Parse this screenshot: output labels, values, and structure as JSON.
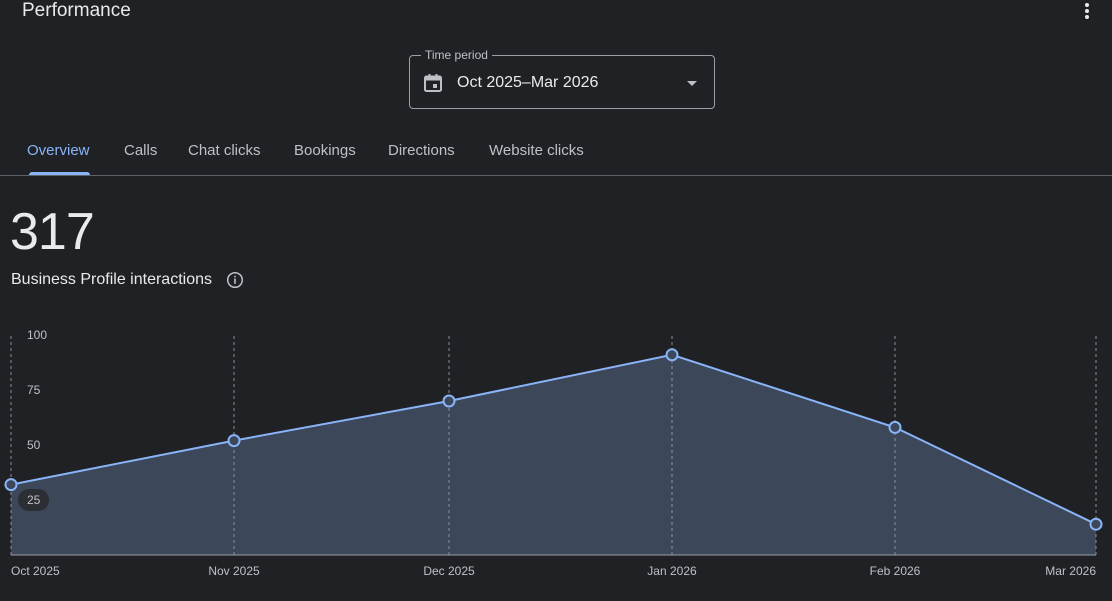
{
  "header": {
    "title": "Performance",
    "more_icon": "more-vert-icon"
  },
  "time_period": {
    "label": "Time period",
    "value": "Oct 2025–Mar 2026",
    "icon": "calendar-icon",
    "caret_icon": "dropdown-caret-icon"
  },
  "tabs": [
    {
      "label": "Overview",
      "active": true
    },
    {
      "label": "Calls",
      "active": false
    },
    {
      "label": "Chat clicks",
      "active": false
    },
    {
      "label": "Bookings",
      "active": false
    },
    {
      "label": "Directions",
      "active": false
    },
    {
      "label": "Website clicks",
      "active": false
    }
  ],
  "summary": {
    "total": "317",
    "metric_label": "Business Profile interactions",
    "info_icon": "info-icon"
  },
  "colors": {
    "background": "#202124",
    "accent": "#8ab4f8",
    "area_fill": "#3c4759",
    "grid": "#9aa0a6",
    "text_secondary": "#bdc1c6"
  },
  "chart_data": {
    "type": "area",
    "x": [
      "Oct 2025",
      "Nov 2025",
      "Dec 2025",
      "Jan 2026",
      "Feb 2026",
      "Mar 2026"
    ],
    "series": [
      {
        "values": [
          32,
          52,
          70,
          91,
          58,
          14
        ]
      }
    ],
    "y_ticks": [
      25,
      50,
      75,
      100
    ],
    "ylim": [
      0,
      100
    ],
    "grid": "vertical dashed lines at each month"
  }
}
